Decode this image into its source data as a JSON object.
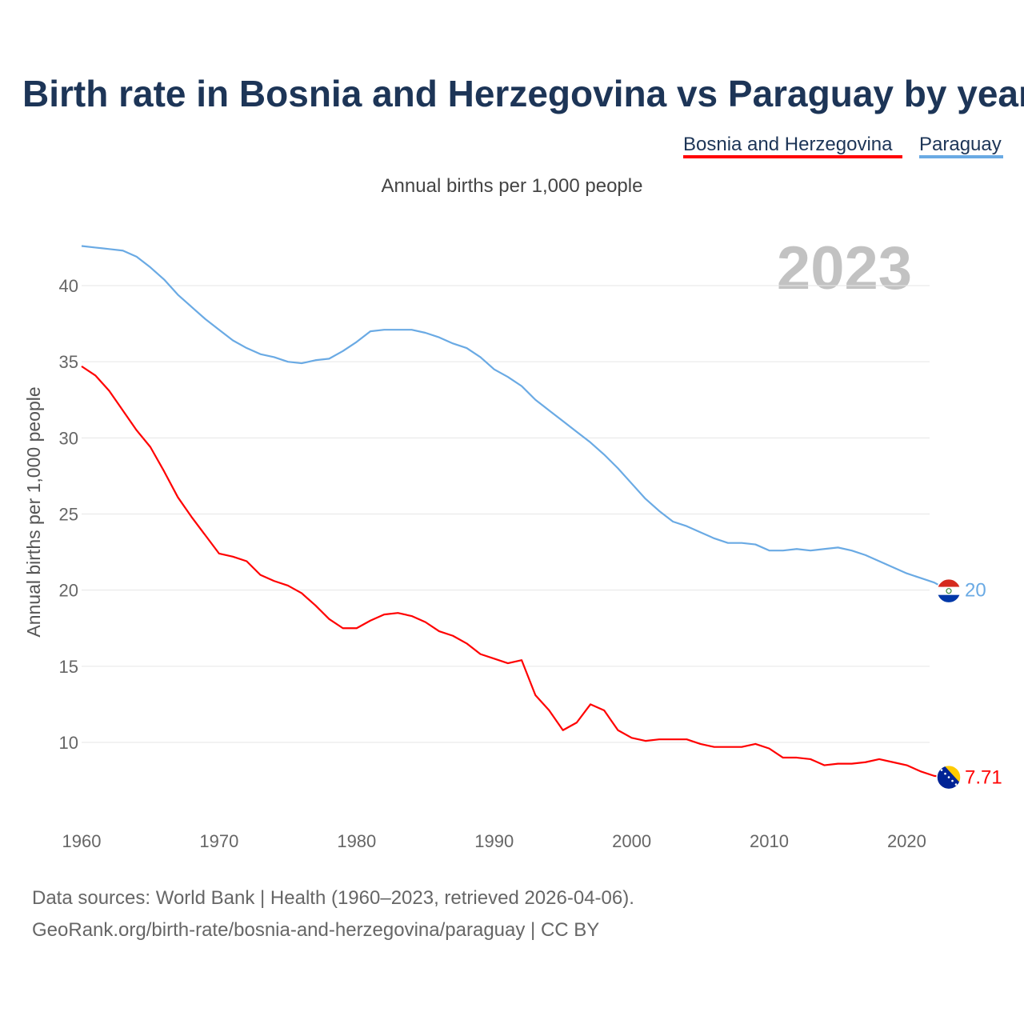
{
  "chart_data": {
    "type": "line",
    "title": "Birth rate in Bosnia and Herzegovina vs Paraguay by year",
    "subtitle": "Annual births per 1,000 people",
    "ylabel": "Annual births per 1,000 people",
    "xlabel": "",
    "year_display": "2023",
    "xlim": [
      1960,
      2023
    ],
    "ylim": [
      5,
      45
    ],
    "yticks": [
      10,
      15,
      20,
      25,
      30,
      35,
      40
    ],
    "xticks": [
      1960,
      1970,
      1980,
      1990,
      2000,
      2010,
      2020
    ],
    "legend_position": "top-right",
    "grid": true,
    "x": [
      1960,
      1961,
      1962,
      1963,
      1964,
      1965,
      1966,
      1967,
      1968,
      1969,
      1970,
      1971,
      1972,
      1973,
      1974,
      1975,
      1976,
      1977,
      1978,
      1979,
      1980,
      1981,
      1982,
      1983,
      1984,
      1985,
      1986,
      1987,
      1988,
      1989,
      1990,
      1991,
      1992,
      1993,
      1994,
      1995,
      1996,
      1997,
      1998,
      1999,
      2000,
      2001,
      2002,
      2003,
      2004,
      2005,
      2006,
      2007,
      2008,
      2009,
      2010,
      2011,
      2012,
      2013,
      2014,
      2015,
      2016,
      2017,
      2018,
      2019,
      2020,
      2021,
      2022,
      2023
    ],
    "series": [
      {
        "name": "Bosnia and Herzegovina",
        "color": "#ff0000",
        "end_label": "7.71",
        "flag": "bosnia-flag-icon",
        "values": [
          34.7,
          34.1,
          33.1,
          31.8,
          30.5,
          29.4,
          27.8,
          26.1,
          24.8,
          23.6,
          22.4,
          22.2,
          21.9,
          21.0,
          20.6,
          20.3,
          19.8,
          19.0,
          18.1,
          17.5,
          17.5,
          18.0,
          18.4,
          18.5,
          18.3,
          17.9,
          17.3,
          17.0,
          16.5,
          15.8,
          15.5,
          15.2,
          15.4,
          13.1,
          12.1,
          10.8,
          11.3,
          12.5,
          12.1,
          10.8,
          10.3,
          10.1,
          10.2,
          10.2,
          10.2,
          9.9,
          9.7,
          9.7,
          9.7,
          9.9,
          9.6,
          9.0,
          9.0,
          8.9,
          8.5,
          8.6,
          8.6,
          8.7,
          8.9,
          8.7,
          8.5,
          8.1,
          7.8,
          7.71
        ]
      },
      {
        "name": "Paraguay",
        "color": "#6aaae4",
        "end_label": "20",
        "flag": "paraguay-flag-icon",
        "values": [
          42.6,
          42.5,
          42.4,
          42.3,
          41.9,
          41.2,
          40.4,
          39.4,
          38.6,
          37.8,
          37.1,
          36.4,
          35.9,
          35.5,
          35.3,
          35.0,
          34.9,
          35.1,
          35.2,
          35.7,
          36.3,
          37.0,
          37.1,
          37.1,
          37.1,
          36.9,
          36.6,
          36.2,
          35.9,
          35.3,
          34.5,
          34.0,
          33.4,
          32.5,
          31.8,
          31.1,
          30.4,
          29.7,
          28.9,
          28.0,
          27.0,
          26.0,
          25.2,
          24.5,
          24.2,
          23.8,
          23.4,
          23.1,
          23.1,
          23.0,
          22.6,
          22.6,
          22.7,
          22.6,
          22.7,
          22.8,
          22.6,
          22.3,
          21.9,
          21.5,
          21.1,
          20.8,
          20.5,
          20.0
        ]
      }
    ]
  },
  "source": {
    "line1": "Data sources: World Bank | Health (1960–2023, retrieved 2026-04-06).",
    "line2": "GeoRank.org/birth-rate/bosnia-and-herzegovina/paraguay | CC BY"
  }
}
